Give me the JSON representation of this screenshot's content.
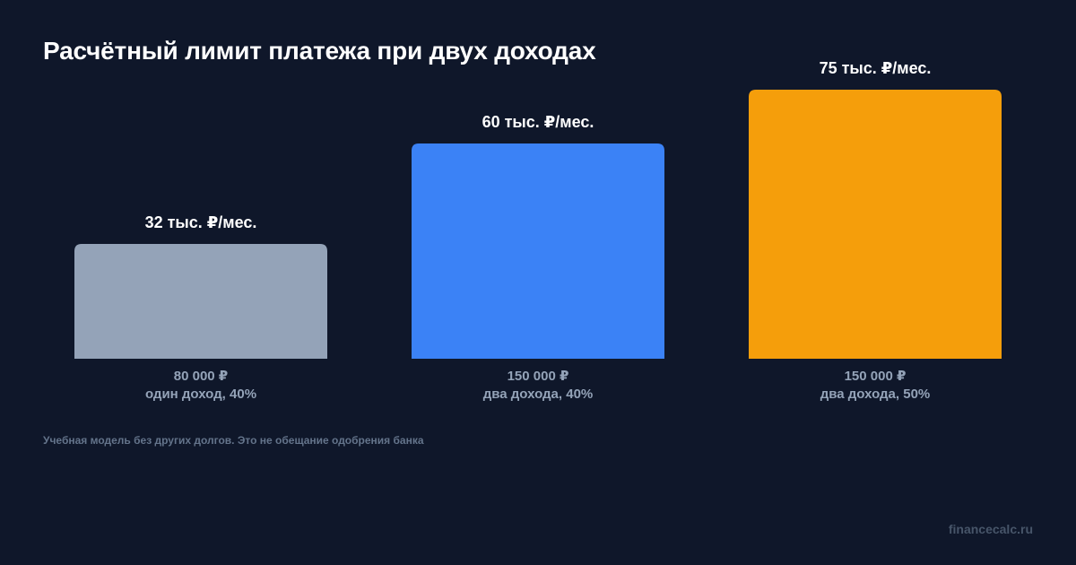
{
  "title": "Расчётный лимит платежа при двух доходах",
  "footnote": "Учебная модель без других долгов. Это не обещание одобрения банка",
  "brand": "financecalc.ru",
  "colors": {
    "background": "#0f172a",
    "text": "#ffffff",
    "muted": "#94a3b8"
  },
  "chart_data": {
    "type": "bar",
    "title": "Расчётный лимит платежа при двух доходах",
    "unit": "тыс. ₽/мес.",
    "values": [
      32,
      60,
      75
    ],
    "value_labels": [
      "32 тыс. ₽/мес.",
      "60 тыс. ₽/мес.",
      "75 тыс. ₽/мес."
    ],
    "categories": [
      {
        "income": "80 000 ₽",
        "scenario": "один доход, 40%"
      },
      {
        "income": "150 000 ₽",
        "scenario": "два дохода, 40%"
      },
      {
        "income": "150 000 ₽",
        "scenario": "два дохода, 50%"
      }
    ],
    "colors": [
      "#94a3b8",
      "#3b82f6",
      "#f59e0b"
    ],
    "ylim": [
      0,
      75
    ],
    "grid": false,
    "legend": "none"
  }
}
